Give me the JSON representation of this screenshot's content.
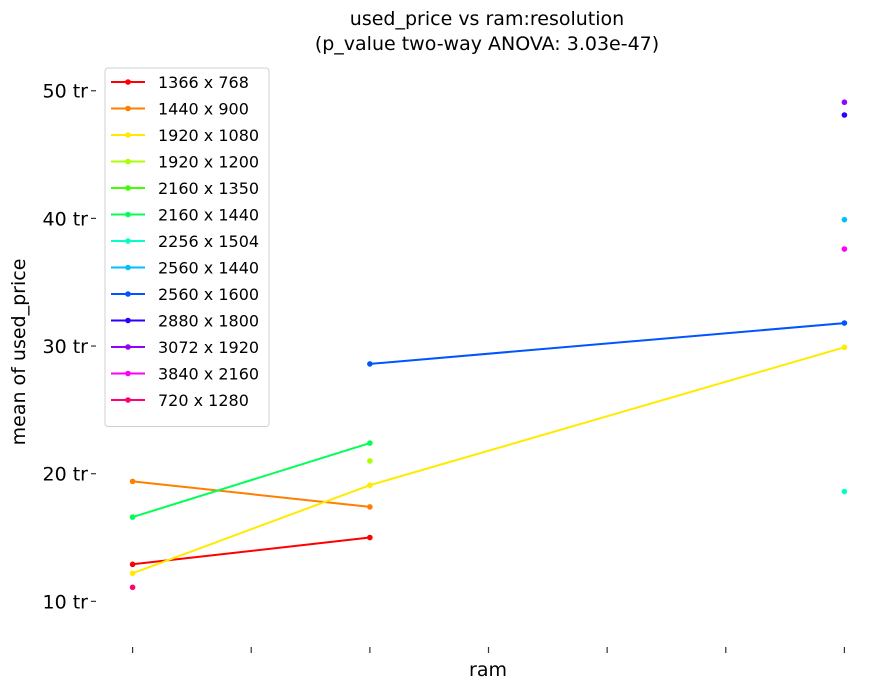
{
  "chart_data": {
    "type": "line",
    "title_line1": "used_price vs ram:resolution",
    "title_line2": "(p_value two-way ANOVA: 3.03e-47)",
    "xlabel": "ram",
    "ylabel": "mean of used_price",
    "x_ticks": [
      0,
      1,
      2,
      3,
      4,
      5,
      6
    ],
    "x_tick_labels": [
      "",
      "",
      "",
      "",
      "",
      "",
      ""
    ],
    "y_ticks": [
      10,
      20,
      30,
      40,
      50
    ],
    "y_tick_labels": [
      "10 tr",
      "20 tr",
      "30 tr",
      "40 tr",
      "50 tr"
    ],
    "xlim": [
      -0.3,
      6.3
    ],
    "ylim": [
      7.6,
      52.8
    ],
    "legend_position": "upper-left",
    "grid": false,
    "series": [
      {
        "name": "1366 x 768",
        "color": "#ff0000",
        "points": [
          [
            0,
            12.9
          ],
          [
            2,
            15.0
          ]
        ]
      },
      {
        "name": "1440 x 900",
        "color": "#ff7f00",
        "points": [
          [
            0,
            19.4
          ],
          [
            2,
            17.4
          ]
        ]
      },
      {
        "name": "1920 x 1080",
        "color": "#ffea00",
        "points": [
          [
            0,
            12.2
          ],
          [
            2,
            19.1
          ],
          [
            6,
            29.9
          ]
        ]
      },
      {
        "name": "1920 x 1200",
        "color": "#aaff00",
        "points": [
          [
            2,
            21.0
          ]
        ]
      },
      {
        "name": "2160 x 1350",
        "color": "#3fff00",
        "points": []
      },
      {
        "name": "2160 x 1440",
        "color": "#00ff55",
        "points": [
          [
            0,
            16.6
          ],
          [
            2,
            22.4
          ]
        ]
      },
      {
        "name": "2256 x 1504",
        "color": "#00ffcc",
        "points": [
          [
            6,
            18.6
          ]
        ]
      },
      {
        "name": "2560 x 1440",
        "color": "#00bfff",
        "points": [
          [
            6,
            39.9
          ]
        ]
      },
      {
        "name": "2560 x 1600",
        "color": "#0055ff",
        "points": [
          [
            2,
            28.6
          ],
          [
            6,
            31.8
          ]
        ]
      },
      {
        "name": "2880 x 1800",
        "color": "#2a00ff",
        "points": [
          [
            6,
            48.1
          ]
        ]
      },
      {
        "name": "3072 x 1920",
        "color": "#9500ff",
        "points": [
          [
            6,
            49.1
          ]
        ]
      },
      {
        "name": "3840 x 2160",
        "color": "#ff00ff",
        "points": [
          [
            6,
            37.6
          ]
        ]
      },
      {
        "name": "720 x 1280",
        "color": "#ff0077",
        "points": [
          [
            0,
            11.1
          ]
        ]
      }
    ]
  }
}
